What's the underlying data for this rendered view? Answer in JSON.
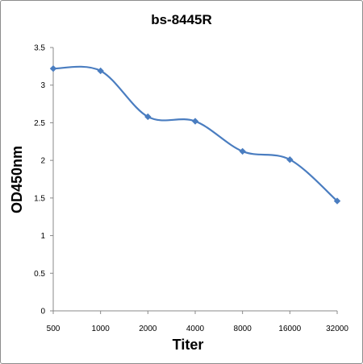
{
  "chart_data": {
    "type": "line",
    "title": "bs-8445R",
    "xlabel": "Titer",
    "ylabel": "OD450nm",
    "categories": [
      "500",
      "1000",
      "2000",
      "4000",
      "8000",
      "16000",
      "32000"
    ],
    "series": [
      {
        "values": [
          3.22,
          3.19,
          2.58,
          2.52,
          2.12,
          2.01,
          1.46
        ]
      }
    ],
    "ylim": [
      0,
      3.5
    ],
    "yticks": [
      "0",
      "0.5",
      "1",
      "1.5",
      "2",
      "2.5",
      "3",
      "3.5"
    ],
    "grid": false,
    "smooth": true,
    "colors": {
      "line": "#4a7dc0",
      "marker": "#4a7dc0",
      "axis": "#888888"
    }
  }
}
